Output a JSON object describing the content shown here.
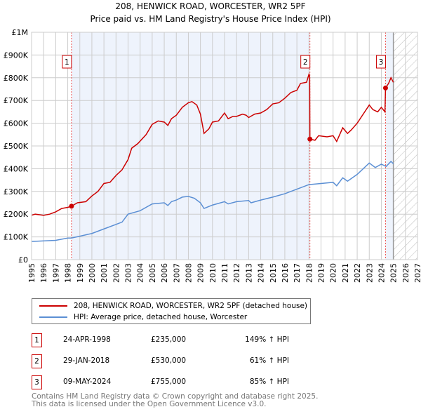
{
  "title": "208, HENWICK ROAD, WORCESTER, WR2 5PF",
  "subtitle": "Price paid vs. HM Land Registry's House Price Index (HPI)",
  "chart_data": {
    "type": "line",
    "title": "208, HENWICK ROAD, WORCESTER, WR2 5PF",
    "subtitle": "Price paid vs. HM Land Registry's House Price Index (HPI)",
    "xlim": [
      1995,
      2027
    ],
    "ylim": [
      0,
      1000000
    ],
    "x_ticks": [
      "1995",
      "1996",
      "1997",
      "1998",
      "1999",
      "2000",
      "2001",
      "2002",
      "2003",
      "2004",
      "2005",
      "2006",
      "2007",
      "2008",
      "2009",
      "2010",
      "2011",
      "2012",
      "2013",
      "2014",
      "2015",
      "2016",
      "2017",
      "2018",
      "2019",
      "2020",
      "2021",
      "2022",
      "2023",
      "2024",
      "2025",
      "2026",
      "2027"
    ],
    "y_ticks": [
      {
        "v": 0,
        "label": "£0"
      },
      {
        "v": 100000,
        "label": "£100K"
      },
      {
        "v": 200000,
        "label": "£200K"
      },
      {
        "v": 300000,
        "label": "£300K"
      },
      {
        "v": 400000,
        "label": "£400K"
      },
      {
        "v": 500000,
        "label": "£500K"
      },
      {
        "v": 600000,
        "label": "£600K"
      },
      {
        "v": 700000,
        "label": "£700K"
      },
      {
        "v": 800000,
        "label": "£800K"
      },
      {
        "v": 900000,
        "label": "£900K"
      },
      {
        "v": 1000000,
        "label": "£1M"
      }
    ],
    "grid": true,
    "shaded_ranges": [
      [
        1998.31,
        2018.08
      ],
      [
        2024.35,
        2025.0
      ]
    ],
    "forecast_hatch": [
      2025.0,
      2027
    ],
    "series": [
      {
        "name": "208, HENWICK ROAD, WORCESTER, WR2 5PF (detached house)",
        "color": "#cc0000",
        "x": [
          1995,
          1995.3,
          1996,
          1996.5,
          1997,
          1997.5,
          1998,
          1998.31,
          1998.8,
          1999.5,
          2000,
          2000.5,
          2001,
          2001.5,
          2002,
          2002.5,
          2003,
          2003.3,
          2003.8,
          2004.5,
          2005,
          2005.5,
          2006,
          2006.3,
          2006.6,
          2007,
          2007.5,
          2008,
          2008.3,
          2008.7,
          2009,
          2009.3,
          2009.7,
          2010,
          2010.5,
          2011,
          2011.3,
          2011.7,
          2012,
          2012.5,
          2012.8,
          2013,
          2013.5,
          2014,
          2014.5,
          2015,
          2015.5,
          2016,
          2016.5,
          2017,
          2017.3,
          2017.8,
          2018,
          2018.06,
          2018.08,
          2018.5,
          2018.8,
          2019.5,
          2020,
          2020.3,
          2020.8,
          2021.2,
          2021.5,
          2022,
          2022.5,
          2023,
          2023.3,
          2023.7,
          2024,
          2024.3,
          2024.35,
          2024.6,
          2024.8,
          2025
        ],
        "y": [
          195000,
          200000,
          195000,
          200000,
          210000,
          225000,
          230000,
          235000,
          250000,
          255000,
          280000,
          300000,
          335000,
          340000,
          370000,
          395000,
          440000,
          490000,
          510000,
          550000,
          595000,
          610000,
          605000,
          590000,
          620000,
          635000,
          670000,
          690000,
          695000,
          680000,
          640000,
          555000,
          575000,
          605000,
          610000,
          645000,
          620000,
          630000,
          630000,
          640000,
          635000,
          625000,
          640000,
          645000,
          660000,
          685000,
          690000,
          710000,
          735000,
          745000,
          775000,
          780000,
          815000,
          805000,
          530000,
          525000,
          545000,
          540000,
          545000,
          520000,
          580000,
          555000,
          570000,
          600000,
          640000,
          680000,
          660000,
          650000,
          670000,
          650000,
          755000,
          775000,
          800000,
          780000
        ]
      },
      {
        "name": "HPI: Average price, detached house, Worcester",
        "color": "#5b8fd4",
        "x": [
          1995,
          1997,
          1998,
          1998.3,
          1999,
          2000,
          2001,
          2002,
          2002.5,
          2003,
          2004,
          2005,
          2006,
          2006.3,
          2006.6,
          2007,
          2007.5,
          2008,
          2008.5,
          2009,
          2009.3,
          2010,
          2011,
          2011.3,
          2012,
          2013,
          2013.2,
          2014,
          2015,
          2016,
          2017,
          2018,
          2019,
          2020,
          2020.3,
          2020.8,
          2021.2,
          2022,
          2023,
          2023.5,
          2024,
          2024.4,
          2024.8,
          2025
        ],
        "y": [
          80000,
          85000,
          95000,
          95000,
          103000,
          115000,
          135000,
          155000,
          165000,
          200000,
          215000,
          245000,
          250000,
          238000,
          255000,
          262000,
          275000,
          278000,
          270000,
          250000,
          225000,
          240000,
          255000,
          245000,
          255000,
          260000,
          250000,
          262000,
          275000,
          290000,
          310000,
          330000,
          335000,
          340000,
          325000,
          360000,
          345000,
          375000,
          425000,
          405000,
          420000,
          410000,
          432000,
          422000
        ]
      }
    ],
    "sales": [
      {
        "num": "1",
        "x": 1998.31,
        "y": 235000,
        "date": "24-APR-1998",
        "price": "£235,000",
        "hpi": "149% ↑ HPI"
      },
      {
        "num": "2",
        "x": 2018.08,
        "y": 530000,
        "date": "29-JAN-2018",
        "price": "£530,000",
        "hpi": "61% ↑ HPI"
      },
      {
        "num": "3",
        "x": 2024.35,
        "y": 755000,
        "date": "09-MAY-2024",
        "price": "£755,000",
        "hpi": "85% ↑ HPI"
      }
    ],
    "legend_position": "below"
  },
  "legend": {
    "red": "208, HENWICK ROAD, WORCESTER, WR2 5PF (detached house)",
    "blue": "HPI: Average price, detached house, Worcester"
  },
  "footer": [
    "Contains HM Land Registry data © Crown copyright and database right 2025.",
    "This data is licensed under the Open Government Licence v3.0."
  ]
}
